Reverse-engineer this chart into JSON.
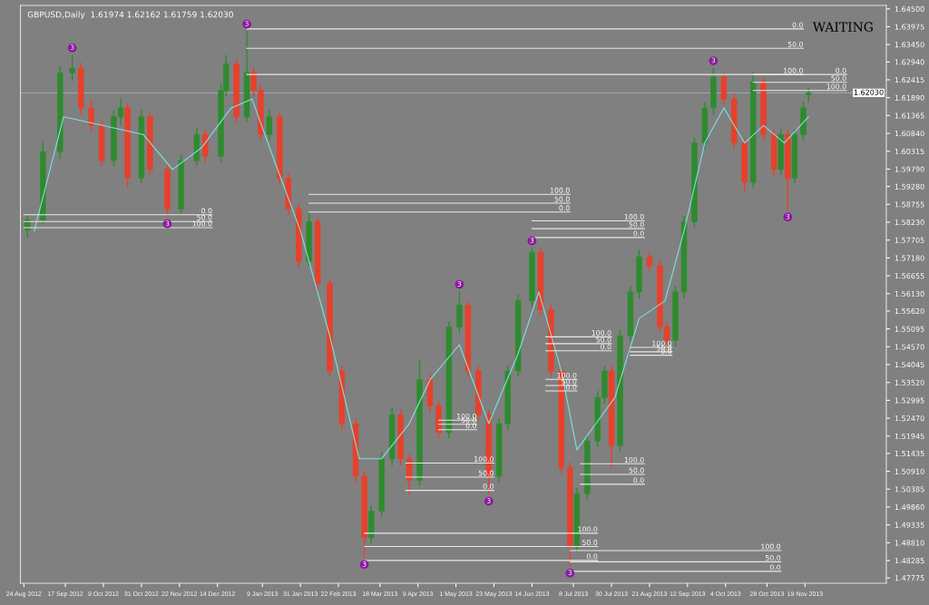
{
  "chart_data": {
    "type": "candlestick",
    "title": "GBPUSD,Daily  1.61974 1.62162 1.61759 1.62030",
    "x": [
      "2012-08-26",
      "2012-09-04",
      "2012-09-14",
      "2012-09-21",
      "2012-09-26",
      "2012-10-02",
      "2012-10-08",
      "2012-10-15",
      "2012-10-19",
      "2012-10-23",
      "2012-10-31",
      "2012-11-05",
      "2012-11-15",
      "2012-11-23",
      "2012-12-02",
      "2012-12-07",
      "2012-12-16",
      "2012-12-19",
      "2012-12-25",
      "2012-12-31",
      "2013-01-04",
      "2013-01-08",
      "2013-01-13",
      "2013-01-19",
      "2013-01-24",
      "2013-01-30",
      "2013-02-05",
      "2013-02-10",
      "2013-02-17",
      "2013-02-24",
      "2013-03-04",
      "2013-03-09",
      "2013-03-13",
      "2013-03-19",
      "2013-03-25",
      "2013-03-30",
      "2013-04-04",
      "2013-04-10",
      "2013-04-16",
      "2013-04-21",
      "2013-04-27",
      "2013-05-03",
      "2013-05-08",
      "2013-05-14",
      "2013-05-20",
      "2013-05-26",
      "2013-05-31",
      "2013-06-06",
      "2013-06-14",
      "2013-06-19",
      "2013-06-25",
      "2013-07-01",
      "2013-07-06",
      "2013-07-10",
      "2013-07-16",
      "2013-07-22",
      "2013-07-26",
      "2013-07-30",
      "2013-08-04",
      "2013-08-10",
      "2013-08-15",
      "2013-08-21",
      "2013-08-27",
      "2013-08-31",
      "2013-09-05",
      "2013-09-10",
      "2013-09-16",
      "2013-09-22",
      "2013-09-27",
      "2013-10-03",
      "2013-10-09",
      "2013-10-15",
      "2013-10-20",
      "2013-10-26",
      "2013-11-01",
      "2013-11-05",
      "2013-11-09",
      "2013-11-13",
      "2013-11-18",
      "2013-11-21"
    ],
    "ohlc": [
      [
        1.58,
        1.584,
        1.578,
        1.583
      ],
      [
        1.583,
        1.606,
        1.582,
        1.603
      ],
      [
        1.603,
        1.628,
        1.601,
        1.6262
      ],
      [
        1.6262,
        1.6313,
        1.624,
        1.6275
      ],
      [
        1.6275,
        1.629,
        1.614,
        1.6159
      ],
      [
        1.6159,
        1.618,
        1.609,
        1.6107
      ],
      [
        1.6107,
        1.612,
        1.5991,
        1.6004
      ],
      [
        1.6004,
        1.615,
        1.599,
        1.6133
      ],
      [
        1.6133,
        1.6185,
        1.611,
        1.6159
      ],
      [
        1.6159,
        1.617,
        1.5927,
        1.5953
      ],
      [
        1.5953,
        1.615,
        1.594,
        1.6133
      ],
      [
        1.6133,
        1.6145,
        1.5965,
        1.5978
      ],
      [
        1.5978,
        1.599,
        1.584,
        1.5862
      ],
      [
        1.5862,
        1.602,
        1.585,
        1.6004
      ],
      [
        1.6004,
        1.61,
        1.599,
        1.6081
      ],
      [
        1.6081,
        1.6095,
        1.6,
        1.6017
      ],
      [
        1.6017,
        1.623,
        1.6,
        1.621
      ],
      [
        1.621,
        1.6313,
        1.6195,
        1.6288
      ],
      [
        1.6288,
        1.63,
        1.6115,
        1.6133
      ],
      [
        1.6133,
        1.6383,
        1.612,
        1.6262
      ],
      [
        1.6262,
        1.6275,
        1.6195,
        1.621
      ],
      [
        1.621,
        1.6225,
        1.6065,
        1.6081
      ],
      [
        1.6081,
        1.615,
        1.6065,
        1.6133
      ],
      [
        1.6133,
        1.6145,
        1.5935,
        1.5953
      ],
      [
        1.5953,
        1.5965,
        1.5845,
        1.5862
      ],
      [
        1.5862,
        1.5875,
        1.569,
        1.5708
      ],
      [
        1.5708,
        1.585,
        1.5695,
        1.5824
      ],
      [
        1.5824,
        1.5835,
        1.5625,
        1.5643
      ],
      [
        1.5643,
        1.5655,
        1.537,
        1.5386
      ],
      [
        1.5386,
        1.54,
        1.5215,
        1.5231
      ],
      [
        1.5231,
        1.5245,
        1.506,
        1.5077
      ],
      [
        1.5077,
        1.509,
        1.4839,
        1.4896
      ],
      [
        1.4896,
        1.499,
        1.488,
        1.4974
      ],
      [
        1.4974,
        1.5145,
        1.496,
        1.5128
      ],
      [
        1.5128,
        1.5275,
        1.511,
        1.5257
      ],
      [
        1.5257,
        1.527,
        1.511,
        1.5128
      ],
      [
        1.5128,
        1.514,
        1.5025,
        1.5064
      ],
      [
        1.5064,
        1.5417,
        1.505,
        1.536
      ],
      [
        1.536,
        1.5375,
        1.5265,
        1.5283
      ],
      [
        1.5283,
        1.5295,
        1.519,
        1.5205
      ],
      [
        1.5205,
        1.553,
        1.519,
        1.5515
      ],
      [
        1.5515,
        1.5618,
        1.55,
        1.5579
      ],
      [
        1.5579,
        1.559,
        1.537,
        1.5386
      ],
      [
        1.5386,
        1.54,
        1.524,
        1.5257
      ],
      [
        1.5257,
        1.527,
        1.5025,
        1.5077
      ],
      [
        1.5077,
        1.5245,
        1.506,
        1.5231
      ],
      [
        1.5231,
        1.54,
        1.5215,
        1.5386
      ],
      [
        1.5386,
        1.561,
        1.537,
        1.5592
      ],
      [
        1.5592,
        1.5746,
        1.5575,
        1.5734
      ],
      [
        1.5734,
        1.5745,
        1.555,
        1.5566
      ],
      [
        1.5566,
        1.558,
        1.537,
        1.5386
      ],
      [
        1.5386,
        1.54,
        1.5085,
        1.5102
      ],
      [
        1.5102,
        1.5115,
        1.4814,
        1.487
      ],
      [
        1.487,
        1.504,
        1.4855,
        1.5025
      ],
      [
        1.5025,
        1.5195,
        1.501,
        1.518
      ],
      [
        1.518,
        1.5325,
        1.5165,
        1.5308
      ],
      [
        1.5308,
        1.54,
        1.529,
        1.5386
      ],
      [
        1.5386,
        1.54,
        1.5102,
        1.5167
      ],
      [
        1.5167,
        1.5505,
        1.515,
        1.5489
      ],
      [
        1.5489,
        1.5635,
        1.5475,
        1.5618
      ],
      [
        1.5618,
        1.574,
        1.56,
        1.5721
      ],
      [
        1.5721,
        1.5735,
        1.568,
        1.5695
      ],
      [
        1.5695,
        1.571,
        1.55,
        1.5515
      ],
      [
        1.5515,
        1.553,
        1.545,
        1.5476
      ],
      [
        1.5476,
        1.5635,
        1.546,
        1.5618
      ],
      [
        1.5618,
        1.584,
        1.56,
        1.5824
      ],
      [
        1.5824,
        1.607,
        1.581,
        1.6056
      ],
      [
        1.6056,
        1.6175,
        1.604,
        1.6159
      ],
      [
        1.6159,
        1.6275,
        1.614,
        1.6249
      ],
      [
        1.6249,
        1.6262,
        1.617,
        1.6185
      ],
      [
        1.6185,
        1.62,
        1.604,
        1.6056
      ],
      [
        1.6056,
        1.607,
        1.5915,
        1.594
      ],
      [
        1.594,
        1.6262,
        1.5925,
        1.6236
      ],
      [
        1.6236,
        1.625,
        1.6065,
        1.6081
      ],
      [
        1.6081,
        1.6095,
        1.596,
        1.5978
      ],
      [
        1.5978,
        1.6095,
        1.5965,
        1.6081
      ],
      [
        1.6081,
        1.6095,
        1.586,
        1.5953
      ],
      [
        1.5953,
        1.6095,
        1.594,
        1.6081
      ],
      [
        1.6081,
        1.6175,
        1.6065,
        1.6159
      ],
      [
        1.61974,
        1.62162,
        1.61759,
        1.6203
      ]
    ],
    "colors": [
      "#2e8b2e",
      "#2e8b2e",
      "#2e8b2e",
      "#2e8b2e",
      "#e8402a",
      "#e8402a",
      "#e8402a",
      "#2e8b2e",
      "#2e8b2e",
      "#e8402a",
      "#2e8b2e",
      "#e8402a",
      "#e8402a",
      "#2e8b2e",
      "#2e8b2e",
      "#e8402a",
      "#2e8b2e",
      "#2e8b2e",
      "#e8402a",
      "#2e8b2e",
      "#e8402a",
      "#e8402a",
      "#2e8b2e",
      "#e8402a",
      "#e8402a",
      "#e8402a",
      "#2e8b2e",
      "#e8402a",
      "#e8402a",
      "#e8402a",
      "#e8402a",
      "#e8402a",
      "#2e8b2e",
      "#2e8b2e",
      "#2e8b2e",
      "#e8402a",
      "#e8402a",
      "#2e8b2e",
      "#e8402a",
      "#e8402a",
      "#2e8b2e",
      "#2e8b2e",
      "#e8402a",
      "#e8402a",
      "#e8402a",
      "#2e8b2e",
      "#2e8b2e",
      "#2e8b2e",
      "#2e8b2e",
      "#e8402a",
      "#e8402a",
      "#e8402a",
      "#e8402a",
      "#2e8b2e",
      "#2e8b2e",
      "#2e8b2e",
      "#2e8b2e",
      "#e8402a",
      "#2e8b2e",
      "#2e8b2e",
      "#2e8b2e",
      "#e8402a",
      "#e8402a",
      "#e8402a",
      "#2e8b2e",
      "#2e8b2e",
      "#2e8b2e",
      "#2e8b2e",
      "#2e8b2e",
      "#e8402a",
      "#e8402a",
      "#e8402a",
      "#2e8b2e",
      "#e8402a",
      "#e8402a",
      "#2e8b2e",
      "#e8402a",
      "#2e8b2e",
      "#2e8b2e",
      "#2e8b2e"
    ],
    "series": [
      {
        "type": "line",
        "color": "#7fe0e0",
        "x": [
          "2012-08-30",
          "2012-09-16",
          "2012-10-09",
          "2012-11-01",
          "2012-11-18",
          "2012-12-05",
          "2012-12-22",
          "2013-01-03",
          "2013-01-14",
          "2013-01-31",
          "2013-02-17",
          "2013-03-06",
          "2013-03-19",
          "2013-04-04",
          "2013-04-16",
          "2013-05-03",
          "2013-05-20",
          "2013-06-06",
          "2013-06-18",
          "2013-07-01",
          "2013-07-10",
          "2013-07-21",
          "2013-08-01",
          "2013-08-15",
          "2013-08-30",
          "2013-09-10",
          "2013-09-22",
          "2013-10-03",
          "2013-10-15",
          "2013-10-26",
          "2013-11-07",
          "2013-11-21"
        ],
        "values": [
          1.5798,
          1.6133,
          1.6107,
          1.6081,
          1.5978,
          1.6043,
          1.6159,
          1.6185,
          1.603,
          1.5798,
          1.5489,
          1.5128,
          1.5128,
          1.5231,
          1.536,
          1.5463,
          1.5231,
          1.5437,
          1.5618,
          1.5386,
          1.5154,
          1.5231,
          1.5308,
          1.554,
          1.5592,
          1.5798,
          1.6056,
          1.6159,
          1.6056,
          1.6107,
          1.6056,
          1.6133
        ]
      },
      {
        "type": "line",
        "color": "#e8e8e8",
        "x": [
          "2012-12-31",
          "2013-11-18"
        ],
        "values": [
          1.6391,
          1.6391
        ]
      },
      {
        "type": "line",
        "color": "#e8e8e8",
        "x": [
          "2012-12-31",
          "2013-11-18"
        ],
        "values": [
          1.6334,
          1.6334
        ]
      },
      {
        "type": "line",
        "color": "#e8e8e8",
        "x": [
          "2012-12-31",
          "2013-11-18"
        ],
        "values": [
          1.6257,
          1.6257
        ]
      },
      {
        "type": "line",
        "color": "#e8e8e8",
        "x": [
          "2013-10-20",
          "2013-12-13"
        ],
        "values": [
          1.6257,
          1.6257
        ]
      },
      {
        "type": "line",
        "color": "#e8e8e8",
        "x": [
          "2013-10-20",
          "2013-12-13"
        ],
        "values": [
          1.6234,
          1.6234
        ]
      },
      {
        "type": "line",
        "color": "#e8e8e8",
        "x": [
          "2013-10-20",
          "2013-12-13"
        ],
        "values": [
          1.621,
          1.621
        ]
      },
      {
        "type": "line",
        "color": "#e8e8e8",
        "x": [
          "2012-08-24",
          "2012-12-11"
        ],
        "values": [
          1.5845,
          1.5845
        ]
      },
      {
        "type": "line",
        "color": "#e8e8e8",
        "x": [
          "2012-08-24",
          "2012-12-11"
        ],
        "values": [
          1.5825,
          1.5825
        ]
      },
      {
        "type": "line",
        "color": "#e8e8e8",
        "x": [
          "2012-08-24",
          "2012-12-11"
        ],
        "values": [
          1.5807,
          1.5807
        ]
      },
      {
        "type": "line",
        "color": "#e8e8e8",
        "x": [
          "2013-02-05",
          "2013-07-06"
        ],
        "values": [
          1.5905,
          1.5905
        ]
      },
      {
        "type": "line",
        "color": "#e8e8e8",
        "x": [
          "2013-02-05",
          "2013-07-06"
        ],
        "values": [
          1.5879,
          1.5879
        ]
      },
      {
        "type": "line",
        "color": "#e8e8e8",
        "x": [
          "2013-02-05",
          "2013-07-06"
        ],
        "values": [
          1.5853,
          1.5853
        ]
      },
      {
        "type": "line",
        "color": "#e8e8e8",
        "x": [
          "2013-06-14",
          "2013-08-18"
        ],
        "values": [
          1.5827,
          1.5827
        ]
      },
      {
        "type": "line",
        "color": "#e8e8e8",
        "x": [
          "2013-06-14",
          "2013-08-18"
        ],
        "values": [
          1.5804,
          1.5804
        ]
      },
      {
        "type": "line",
        "color": "#e8e8e8",
        "x": [
          "2013-06-14",
          "2013-08-18"
        ],
        "values": [
          1.5778,
          1.5778
        ]
      },
      {
        "type": "line",
        "color": "#e8e8e8",
        "x": [
          "2013-06-22",
          "2013-07-30"
        ],
        "values": [
          1.5486,
          1.5486
        ]
      },
      {
        "type": "line",
        "color": "#e8e8e8",
        "x": [
          "2013-06-22",
          "2013-07-30"
        ],
        "values": [
          1.5466,
          1.5466
        ]
      },
      {
        "type": "line",
        "color": "#e8e8e8",
        "x": [
          "2013-06-22",
          "2013-07-30"
        ],
        "values": [
          1.5445,
          1.5445
        ]
      },
      {
        "type": "line",
        "color": "#e8e8e8",
        "x": [
          "2013-08-10",
          "2013-09-03"
        ],
        "values": [
          1.5455,
          1.5455
        ]
      },
      {
        "type": "line",
        "color": "#e8e8e8",
        "x": [
          "2013-08-10",
          "2013-09-03"
        ],
        "values": [
          1.5442,
          1.5442
        ]
      },
      {
        "type": "line",
        "color": "#e8e8e8",
        "x": [
          "2013-08-10",
          "2013-09-03"
        ],
        "values": [
          1.5432,
          1.5432
        ]
      },
      {
        "type": "line",
        "color": "#e8e8e8",
        "x": [
          "2013-04-21",
          "2013-05-13"
        ],
        "values": [
          1.5241,
          1.5241
        ]
      },
      {
        "type": "line",
        "color": "#e8e8e8",
        "x": [
          "2013-04-21",
          "2013-05-13"
        ],
        "values": [
          1.5229,
          1.5229
        ]
      },
      {
        "type": "line",
        "color": "#e8e8e8",
        "x": [
          "2013-04-21",
          "2013-05-13"
        ],
        "values": [
          1.5213,
          1.5213
        ]
      },
      {
        "type": "line",
        "color": "#e8e8e8",
        "x": [
          "2013-04-02",
          "2013-05-23"
        ],
        "values": [
          1.5115,
          1.5115
        ]
      },
      {
        "type": "line",
        "color": "#e8e8e8",
        "x": [
          "2013-04-02",
          "2013-05-23"
        ],
        "values": [
          1.5074,
          1.5074
        ]
      },
      {
        "type": "line",
        "color": "#e8e8e8",
        "x": [
          "2013-04-02",
          "2013-05-23"
        ],
        "values": [
          1.5035,
          1.5035
        ]
      },
      {
        "type": "line",
        "color": "#e8e8e8",
        "x": [
          "2013-06-22",
          "2013-07-10"
        ],
        "values": [
          1.5361,
          1.5361
        ]
      },
      {
        "type": "line",
        "color": "#e8e8e8",
        "x": [
          "2013-06-22",
          "2013-07-10"
        ],
        "values": [
          1.5343,
          1.5343
        ]
      },
      {
        "type": "line",
        "color": "#e8e8e8",
        "x": [
          "2013-06-22",
          "2013-07-10"
        ],
        "values": [
          1.5327,
          1.5327
        ]
      },
      {
        "type": "line",
        "color": "#e8e8e8",
        "x": [
          "2013-07-12",
          "2013-08-18"
        ],
        "values": [
          1.5113,
          1.5113
        ]
      },
      {
        "type": "line",
        "color": "#e8e8e8",
        "x": [
          "2013-07-12",
          "2013-08-18"
        ],
        "values": [
          1.5082,
          1.5082
        ]
      },
      {
        "type": "line",
        "color": "#e8e8e8",
        "x": [
          "2013-07-12",
          "2013-08-18"
        ],
        "values": [
          1.5053,
          1.5053
        ]
      },
      {
        "type": "line",
        "color": "#e8e8e8",
        "x": [
          "2013-03-09",
          "2013-07-22"
        ],
        "values": [
          1.4909,
          1.4909
        ]
      },
      {
        "type": "line",
        "color": "#e8e8e8",
        "x": [
          "2013-03-09",
          "2013-07-22"
        ],
        "values": [
          1.487,
          1.487
        ]
      },
      {
        "type": "line",
        "color": "#e8e8e8",
        "x": [
          "2013-03-09",
          "2013-07-22"
        ],
        "values": [
          1.4829,
          1.4829
        ]
      },
      {
        "type": "line",
        "color": "#e8e8e8",
        "x": [
          "2013-07-06",
          "2013-11-05"
        ],
        "values": [
          1.4858,
          1.4858
        ]
      },
      {
        "type": "line",
        "color": "#e8e8e8",
        "x": [
          "2013-07-06",
          "2013-11-05"
        ],
        "values": [
          1.4825,
          1.4825
        ]
      },
      {
        "type": "line",
        "color": "#e8e8e8",
        "x": [
          "2013-07-06",
          "2013-11-05"
        ],
        "values": [
          1.4797,
          1.4797
        ]
      }
    ],
    "xlim": [
      "2012-08-22",
      "2014-01-05"
    ],
    "xticks": [
      {
        "value": "2012-08-24",
        "label": "24 Aug 2012"
      },
      {
        "value": "2012-09-17",
        "label": "17 Sep 2012"
      },
      {
        "value": "2012-10-09",
        "label": "9 Oct 2012"
      },
      {
        "value": "2012-10-31",
        "label": "31 Oct 2012"
      },
      {
        "value": "2012-11-22",
        "label": "22 Nov 2012"
      },
      {
        "value": "2012-12-14",
        "label": "14 Dec 2012"
      },
      {
        "value": "2013-01-09",
        "label": "9 Jan 2013"
      },
      {
        "value": "2013-01-31",
        "label": "31 Jan 2013"
      },
      {
        "value": "2013-02-22",
        "label": "22 Feb 2013"
      },
      {
        "value": "2013-03-18",
        "label": "18 Mar 2013"
      },
      {
        "value": "2013-04-09",
        "label": "9 Apr 2013"
      },
      {
        "value": "2013-05-01",
        "label": "1 May 2013"
      },
      {
        "value": "2013-05-23",
        "label": "23 May 2013"
      },
      {
        "value": "2013-06-14",
        "label": "14 Jun 2013"
      },
      {
        "value": "2013-07-08",
        "label": "8 Jul 2013"
      },
      {
        "value": "2013-07-30",
        "label": "30 Jul 2013"
      },
      {
        "value": "2013-08-21",
        "label": "21 Aug 2013"
      },
      {
        "value": "2013-09-12",
        "label": "12 Sep 2013"
      },
      {
        "value": "2013-10-04",
        "label": "4 Oct 2013"
      },
      {
        "value": "2013-10-28",
        "label": "28 Oct 2013"
      },
      {
        "value": "2013-11-19",
        "label": "19 Nov 2013"
      }
    ],
    "ylim": [
      1.4762,
      1.646
    ],
    "yticks": [
      {
        "value": 1.645,
        "label": "1.64500"
      },
      {
        "value": 1.63975,
        "label": "1.63975"
      },
      {
        "value": 1.6345,
        "label": "1.63450"
      },
      {
        "value": 1.6294,
        "label": "1.62940"
      },
      {
        "value": 1.62415,
        "label": "1.62415"
      },
      {
        "value": 1.6189,
        "label": "1.61890"
      },
      {
        "value": 1.61365,
        "label": "1.61365"
      },
      {
        "value": 1.6084,
        "label": "1.60840"
      },
      {
        "value": 1.60315,
        "label": "1.60315"
      },
      {
        "value": 1.5979,
        "label": "1.59790"
      },
      {
        "value": 1.5928,
        "label": "1.59280"
      },
      {
        "value": 1.58755,
        "label": "1.58755"
      },
      {
        "value": 1.5823,
        "label": "1.58230"
      },
      {
        "value": 1.57705,
        "label": "1.57705"
      },
      {
        "value": 1.5718,
        "label": "1.57180"
      },
      {
        "value": 1.56655,
        "label": "1.56655"
      },
      {
        "value": 1.5613,
        "label": "1.56130"
      },
      {
        "value": 1.5562,
        "label": "1.55620"
      },
      {
        "value": 1.55095,
        "label": "1.55095"
      },
      {
        "value": 1.5457,
        "label": "1.54570"
      },
      {
        "value": 1.54045,
        "label": "1.54045"
      },
      {
        "value": 1.5352,
        "label": "1.53520"
      },
      {
        "value": 1.52995,
        "label": "1.52995"
      },
      {
        "value": 1.5247,
        "label": "1.52470"
      },
      {
        "value": 1.51945,
        "label": "1.51945"
      },
      {
        "value": 1.51435,
        "label": "1.51435"
      },
      {
        "value": 1.5091,
        "label": "1.50910"
      },
      {
        "value": 1.50385,
        "label": "1.50385"
      },
      {
        "value": 1.4986,
        "label": "1.49860"
      },
      {
        "value": 1.49335,
        "label": "1.49335"
      },
      {
        "value": 1.4881,
        "label": "1.48810"
      },
      {
        "value": 1.48285,
        "label": "1.48285"
      },
      {
        "value": 1.47775,
        "label": "1.47775"
      }
    ],
    "ref_lines": [
      {
        "axis": "y",
        "value": 1.6203,
        "label": "1.62030",
        "color": "#9fb4c8"
      }
    ],
    "annotations": [
      "WAITING",
      {
        "text": "0.0",
        "x": "2013-11-18",
        "y": 1.6391
      },
      {
        "text": "50.0",
        "x": "2013-11-18",
        "y": 1.6334
      },
      {
        "text": "100.0",
        "x": "2013-11-18",
        "y": 1.6257
      },
      {
        "text": "0.0",
        "x": "2013-12-13",
        "y": 1.6257
      },
      {
        "text": "50.0",
        "x": "2013-12-13",
        "y": 1.6234
      },
      {
        "text": "100.0",
        "x": "2013-12-13",
        "y": 1.621
      },
      {
        "text": "0.0",
        "x": "2012-12-11",
        "y": 1.5845
      },
      {
        "text": "50.0",
        "x": "2012-12-11",
        "y": 1.5825
      },
      {
        "text": "100.0",
        "x": "2012-12-11",
        "y": 1.5807
      },
      {
        "text": "100.0",
        "x": "2013-07-06",
        "y": 1.5905
      },
      {
        "text": "50.0",
        "x": "2013-07-06",
        "y": 1.5879
      },
      {
        "text": "0.0",
        "x": "2013-07-06",
        "y": 1.5853
      },
      {
        "text": "100.0",
        "x": "2013-08-18",
        "y": 1.5827
      },
      {
        "text": "50.0",
        "x": "2013-08-18",
        "y": 1.5804
      },
      {
        "text": "0.0",
        "x": "2013-08-18",
        "y": 1.5778
      },
      {
        "text": "100.0",
        "x": "2013-07-30",
        "y": 1.5486
      },
      {
        "text": "50.0",
        "x": "2013-07-30",
        "y": 1.5466
      },
      {
        "text": "0.0",
        "x": "2013-07-30",
        "y": 1.5445
      },
      {
        "text": "100.0",
        "x": "2013-09-03",
        "y": 1.5455
      },
      {
        "text": "50.0",
        "x": "2013-09-03",
        "y": 1.5442
      },
      {
        "text": "0.0",
        "x": "2013-09-03",
        "y": 1.5432
      },
      {
        "text": "100.0",
        "x": "2013-05-13",
        "y": 1.5241
      },
      {
        "text": "50.0",
        "x": "2013-05-13",
        "y": 1.5229
      },
      {
        "text": "0.0",
        "x": "2013-05-13",
        "y": 1.5213
      },
      {
        "text": "100.0",
        "x": "2013-05-23",
        "y": 1.5115
      },
      {
        "text": "50.0",
        "x": "2013-05-23",
        "y": 1.5074
      },
      {
        "text": "0.0",
        "x": "2013-05-23",
        "y": 1.5035
      },
      {
        "text": "100.0",
        "x": "2013-07-10",
        "y": 1.5361
      },
      {
        "text": "50.0",
        "x": "2013-07-10",
        "y": 1.5343
      },
      {
        "text": "0.0",
        "x": "2013-07-10",
        "y": 1.5327
      },
      {
        "text": "100.0",
        "x": "2013-08-18",
        "y": 1.5113
      },
      {
        "text": "50.0",
        "x": "2013-08-18",
        "y": 1.5082
      },
      {
        "text": "0.0",
        "x": "2013-08-18",
        "y": 1.5053
      },
      {
        "text": "100.0",
        "x": "2013-07-22",
        "y": 1.4909
      },
      {
        "text": "50.0",
        "x": "2013-07-22",
        "y": 1.487
      },
      {
        "text": "0.0",
        "x": "2013-07-22",
        "y": 1.4829
      },
      {
        "text": "100.0",
        "x": "2013-11-05",
        "y": 1.4858
      },
      {
        "text": "50.0",
        "x": "2013-11-05",
        "y": 1.4825
      },
      {
        "text": "0.0",
        "x": "2013-11-05",
        "y": 1.4797
      },
      {
        "text": "3",
        "x": "2012-09-21",
        "y": 1.6313
      },
      {
        "text": "3",
        "x": "2012-11-15",
        "y": 1.584
      },
      {
        "text": "3",
        "x": "2012-12-31",
        "y": 1.6383
      },
      {
        "text": "3",
        "x": "2013-03-09",
        "y": 1.4839
      },
      {
        "text": "3",
        "x": "2013-05-03",
        "y": 1.5618
      },
      {
        "text": "3",
        "x": "2013-05-20",
        "y": 1.5025
      },
      {
        "text": "3",
        "x": "2013-06-14",
        "y": 1.5746
      },
      {
        "text": "3",
        "x": "2013-07-06",
        "y": 1.4814
      },
      {
        "text": "3",
        "x": "2013-09-27",
        "y": 1.6275
      },
      {
        "text": "3",
        "x": "2013-11-09",
        "y": 1.586
      }
    ],
    "grid": false
  }
}
